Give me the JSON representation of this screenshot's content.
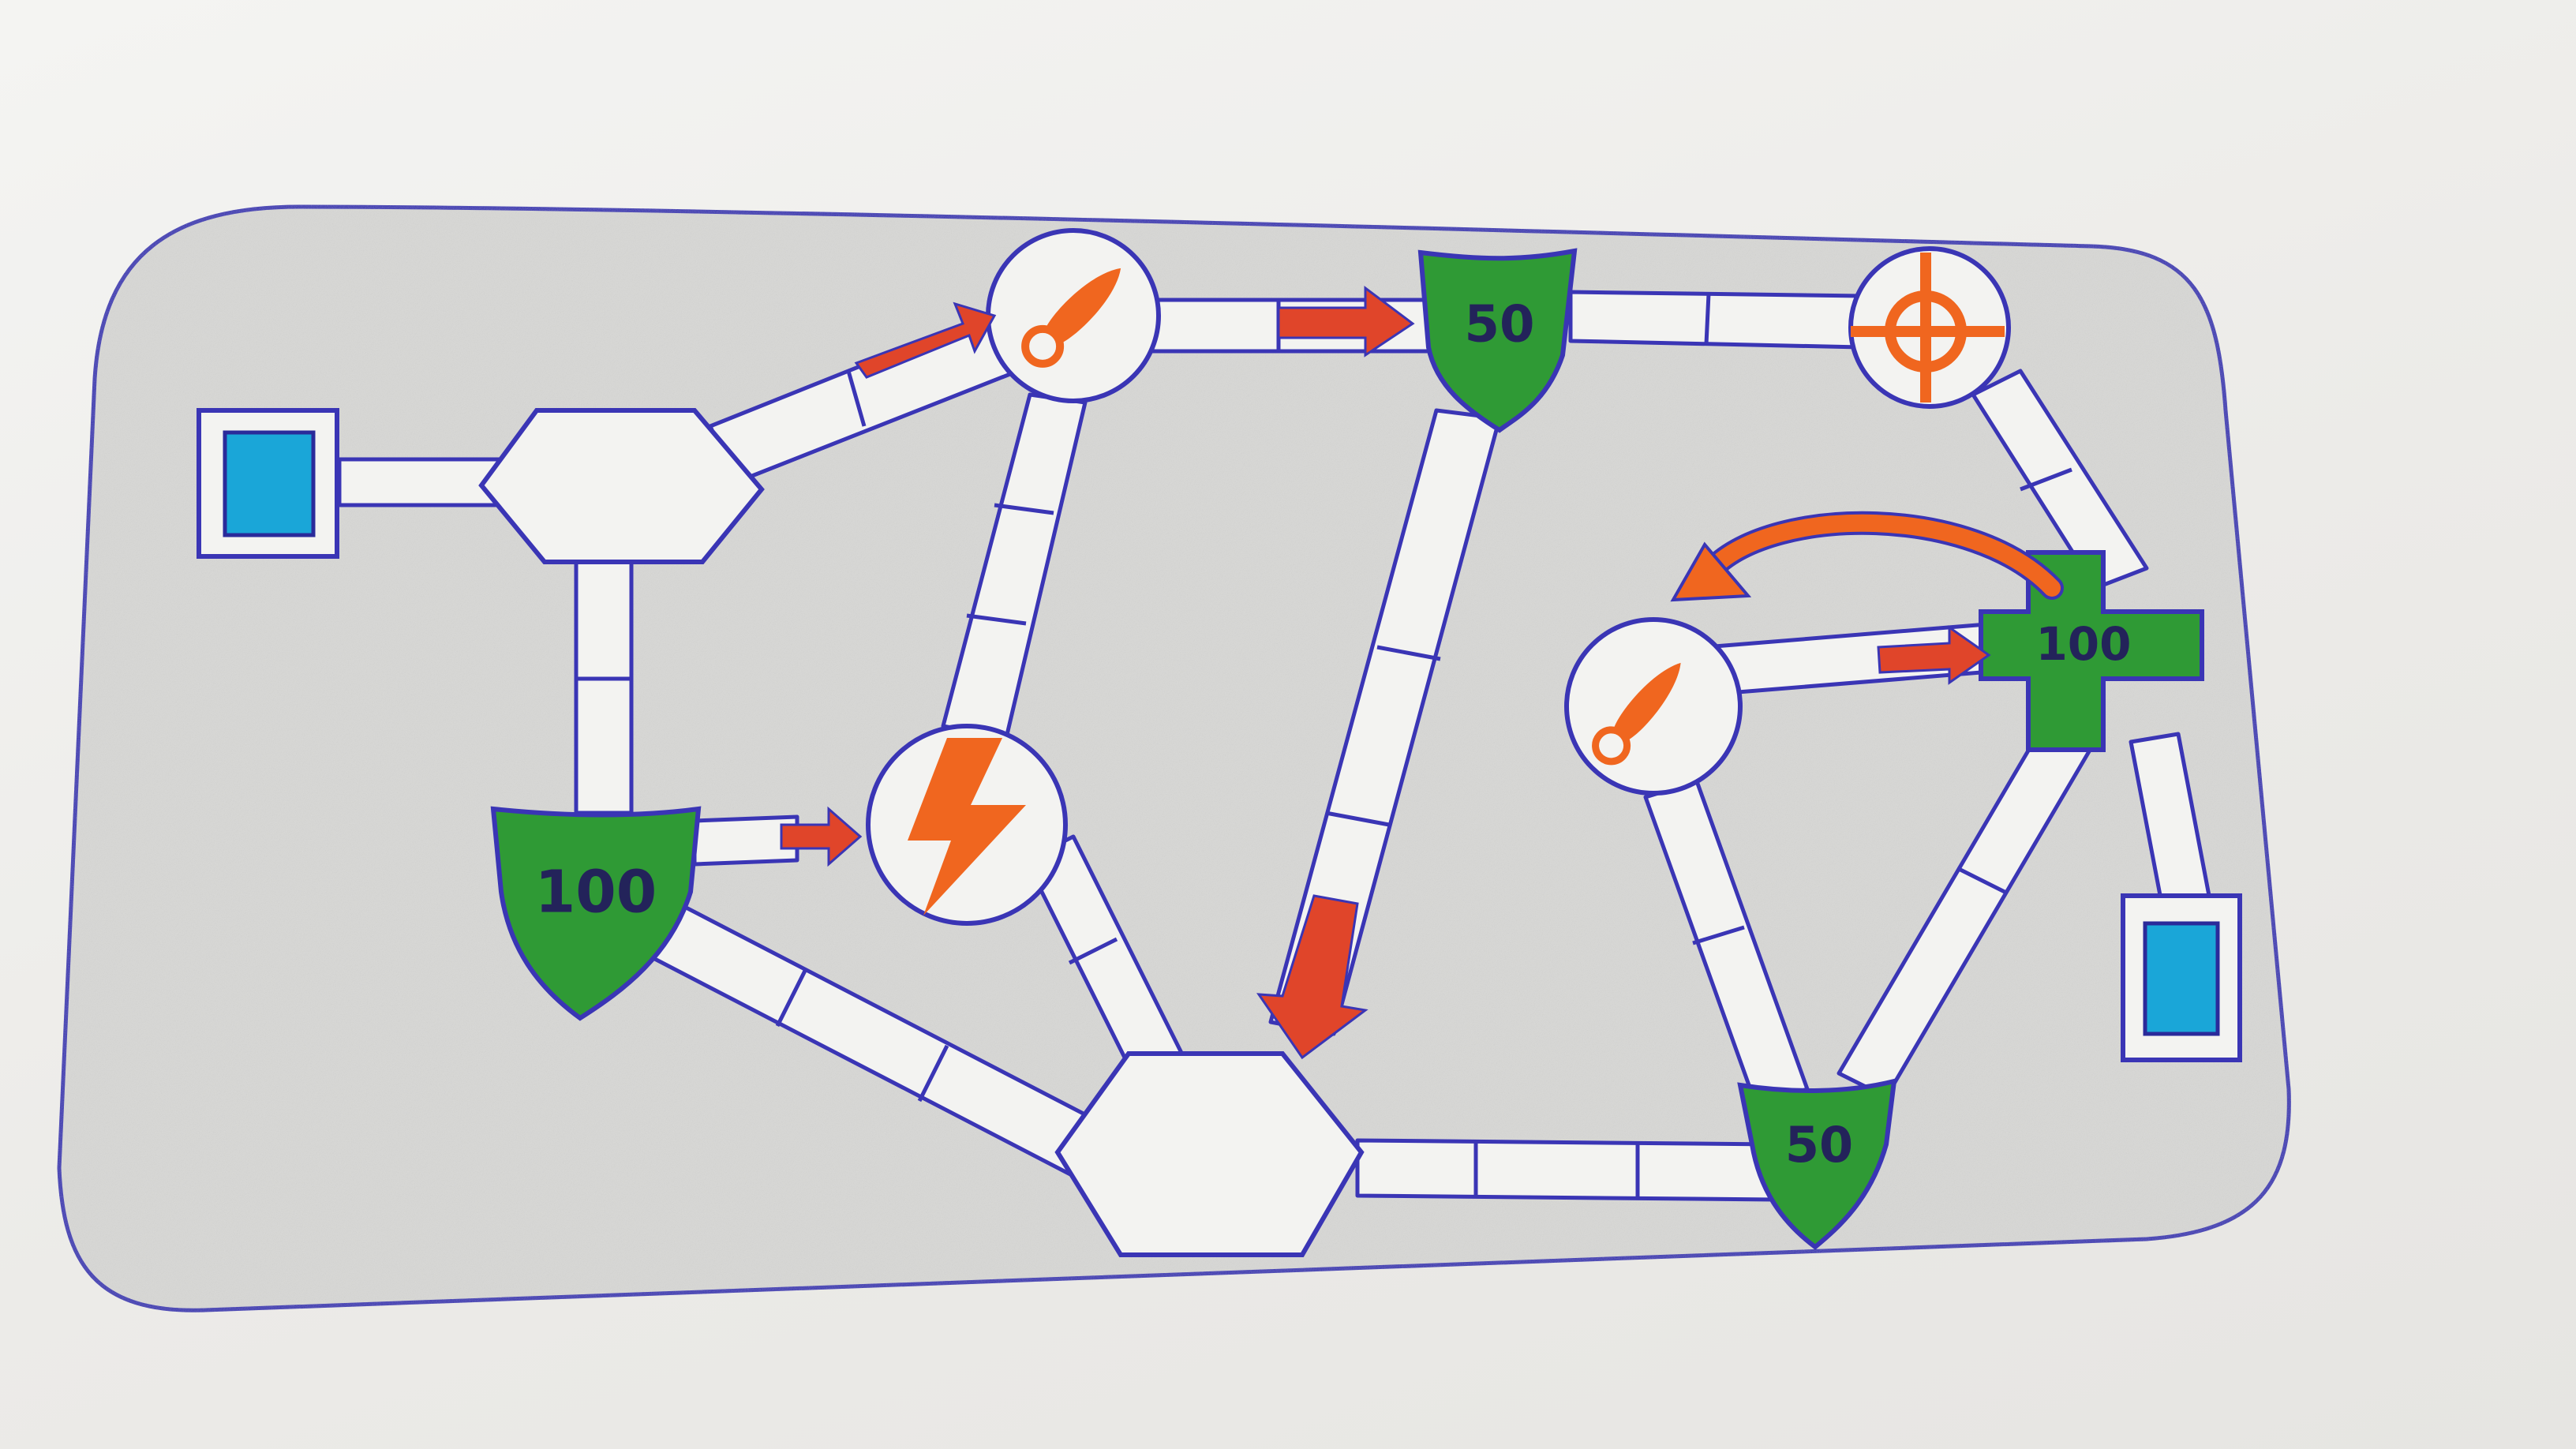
{
  "board": {
    "colors": {
      "paper": "#eeede9",
      "board_fill": "#d9d9d7",
      "ink": "#3a35b5",
      "path_fill": "#f3f3f1",
      "shield_green": "#2f9a35",
      "accent_orange": "#f0661f",
      "arrow_red": "#e0452a",
      "portal_blue": "#1aa6d8"
    },
    "shields": [
      {
        "id": "shield-top",
        "value": "50"
      },
      {
        "id": "shield-left",
        "value": "100"
      },
      {
        "id": "shield-bottom-right",
        "value": "50"
      }
    ],
    "health_cross": {
      "value": "100"
    },
    "icons": {
      "rocket_top": "rocket-icon",
      "rocket_right": "rocket-icon",
      "lightning": "lightning-icon",
      "crosshair": "crosshair-icon",
      "portal": "portal-icon",
      "hexagon": "hexagon-node"
    }
  }
}
